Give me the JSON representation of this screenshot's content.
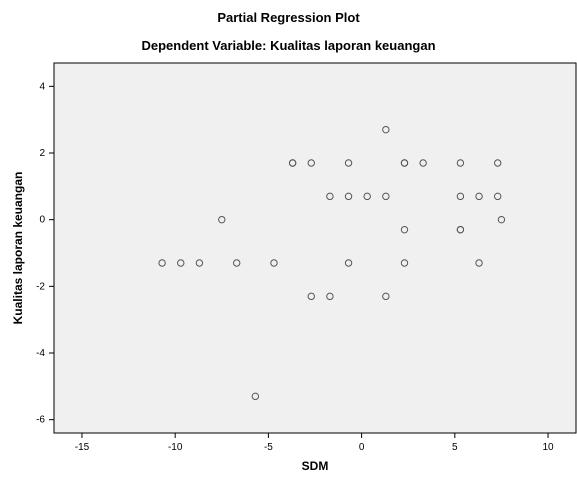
{
  "chart_data": {
    "type": "scatter",
    "title": "Partial Regression Plot",
    "subtitle": "Dependent Variable: Kualitas laporan keuangan",
    "xlabel": "SDM",
    "ylabel": "Kualitas laporan keuangan",
    "xlim": [
      -16.5,
      11.5
    ],
    "ylim": [
      -6.4,
      4.7
    ],
    "x_ticks": [
      -15,
      -10,
      -5,
      0,
      5,
      10
    ],
    "x_tick_labels": [
      "-15",
      "-10",
      "-5",
      "0",
      "5",
      "10"
    ],
    "y_ticks": [
      -6,
      -4,
      -2,
      0,
      2,
      4
    ],
    "y_tick_labels": [
      "-6",
      "-4",
      "-2",
      "0",
      "2",
      "4"
    ],
    "grid": false,
    "plot_background": "#f0f0f0",
    "marker_color": "#555555",
    "points": [
      {
        "x": 1.3,
        "y": 2.7
      },
      {
        "x": -3.7,
        "y": 1.7
      },
      {
        "x": -3.7,
        "y": 1.7
      },
      {
        "x": -2.7,
        "y": 1.7
      },
      {
        "x": -0.7,
        "y": 1.7
      },
      {
        "x": 2.3,
        "y": 1.7
      },
      {
        "x": 2.3,
        "y": 1.7
      },
      {
        "x": 3.3,
        "y": 1.7
      },
      {
        "x": 5.3,
        "y": 1.7
      },
      {
        "x": 7.3,
        "y": 1.7
      },
      {
        "x": -1.7,
        "y": 0.7
      },
      {
        "x": -0.7,
        "y": 0.7
      },
      {
        "x": 0.3,
        "y": 0.7
      },
      {
        "x": 1.3,
        "y": 0.7
      },
      {
        "x": 5.3,
        "y": 0.7
      },
      {
        "x": 6.3,
        "y": 0.7
      },
      {
        "x": 7.3,
        "y": 0.7
      },
      {
        "x": -7.5,
        "y": 0.0
      },
      {
        "x": 7.5,
        "y": 0.0
      },
      {
        "x": 2.3,
        "y": -0.3
      },
      {
        "x": 5.3,
        "y": -0.3
      },
      {
        "x": 5.3,
        "y": -0.3
      },
      {
        "x": -10.7,
        "y": -1.3
      },
      {
        "x": -9.7,
        "y": -1.3
      },
      {
        "x": -8.7,
        "y": -1.3
      },
      {
        "x": -6.7,
        "y": -1.3
      },
      {
        "x": -4.7,
        "y": -1.3
      },
      {
        "x": -0.7,
        "y": -1.3
      },
      {
        "x": 2.3,
        "y": -1.3
      },
      {
        "x": 6.3,
        "y": -1.3
      },
      {
        "x": -2.7,
        "y": -2.3
      },
      {
        "x": -1.7,
        "y": -2.3
      },
      {
        "x": 1.3,
        "y": -2.3
      },
      {
        "x": -5.7,
        "y": -5.3
      }
    ]
  }
}
